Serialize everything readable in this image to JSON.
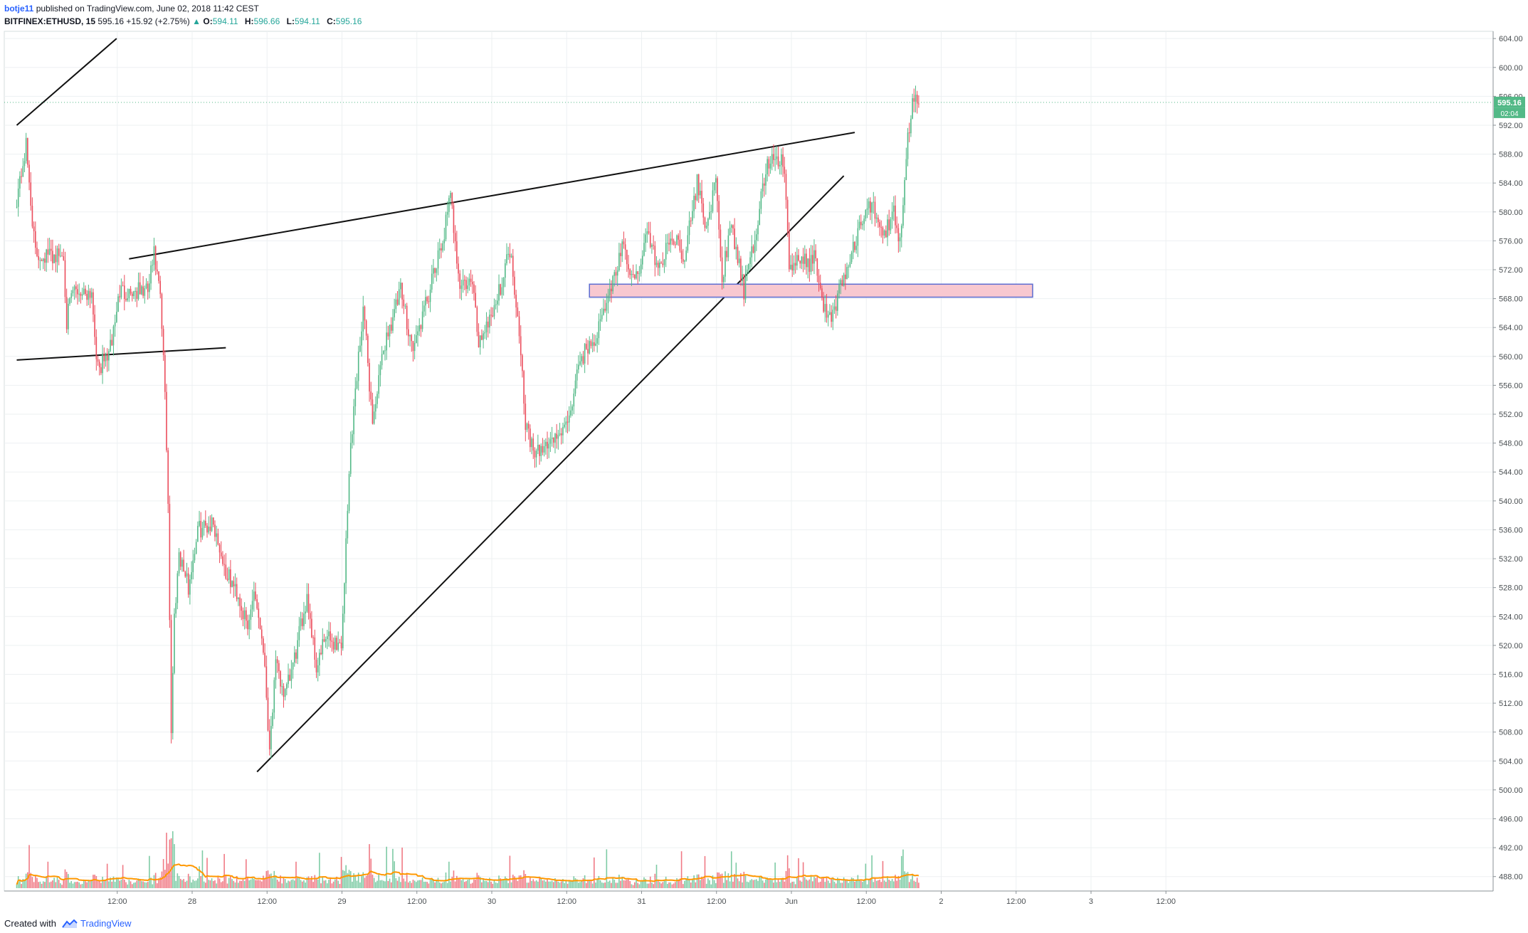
{
  "header": {
    "publisher": "botje11",
    "published_text": "published on TradingView.com, June 02, 2018 11:42 CEST",
    "symbol": "BITFINEX:ETHUSD, 15",
    "last": "595.16",
    "change": "+15.92 (+2.75%)",
    "ohlc": [
      {
        "key": "O:",
        "val": "594.11"
      },
      {
        "key": "H:",
        "val": "596.66"
      },
      {
        "key": "L:",
        "val": "594.11"
      },
      {
        "key": "C:",
        "val": "595.16"
      }
    ]
  },
  "footer": {
    "created_with": "Created with",
    "brand": "TradingView"
  },
  "chart_data": {
    "type": "candlestick",
    "y_axis": {
      "min": 486,
      "max": 605,
      "ticks": [
        "488.00",
        "492.00",
        "496.00",
        "500.00",
        "504.00",
        "508.00",
        "512.00",
        "516.00",
        "520.00",
        "524.00",
        "528.00",
        "532.00",
        "536.00",
        "540.00",
        "544.00",
        "548.00",
        "552.00",
        "556.00",
        "560.00",
        "564.00",
        "568.00",
        "572.00",
        "576.00",
        "580.00",
        "584.00",
        "588.00",
        "592.00",
        "596.00",
        "600.00",
        "604.00"
      ]
    },
    "x_axis": {
      "bars_per_day": 96,
      "ticks": [
        {
          "label": "12:00",
          "bar": 48
        },
        {
          "label": "28",
          "bar": 96
        },
        {
          "label": "12:00",
          "bar": 144
        },
        {
          "label": "29",
          "bar": 192
        },
        {
          "label": "12:00",
          "bar": 240
        },
        {
          "label": "30",
          "bar": 288
        },
        {
          "label": "12:00",
          "bar": 336
        },
        {
          "label": "31",
          "bar": 384
        },
        {
          "label": "12:00",
          "bar": 432
        },
        {
          "label": "Jun",
          "bar": 480
        },
        {
          "label": "12:00",
          "bar": 528
        },
        {
          "label": "2",
          "bar": 576
        },
        {
          "label": "12:00",
          "bar": 624
        },
        {
          "label": "3",
          "bar": 672
        },
        {
          "label": "12:00",
          "bar": 720
        }
      ]
    },
    "price_label": "595.16",
    "countdown_label": "02:04",
    "last_price": 595.16,
    "colors": {
      "up": "#53b987",
      "down": "#eb4d5c",
      "volume_ma": "#ff9800",
      "zone_fill": "#f8c8d0",
      "zone_border": "#5b6bd0"
    },
    "price_path": [
      {
        "bar": 0,
        "price": 582
      },
      {
        "bar": 6,
        "price": 589
      },
      {
        "bar": 12,
        "price": 574
      },
      {
        "bar": 30,
        "price": 574
      },
      {
        "bar": 32,
        "price": 565
      },
      {
        "bar": 36,
        "price": 569
      },
      {
        "bar": 48,
        "price": 569
      },
      {
        "bar": 52,
        "price": 558
      },
      {
        "bar": 60,
        "price": 561
      },
      {
        "bar": 66,
        "price": 569
      },
      {
        "bar": 84,
        "price": 569
      },
      {
        "bar": 88,
        "price": 574
      },
      {
        "bar": 92,
        "price": 568
      },
      {
        "bar": 95,
        "price": 555
      },
      {
        "bar": 97,
        "price": 540
      },
      {
        "bar": 99,
        "price": 508
      },
      {
        "bar": 101,
        "price": 524
      },
      {
        "bar": 104,
        "price": 533
      },
      {
        "bar": 110,
        "price": 528
      },
      {
        "bar": 116,
        "price": 536
      },
      {
        "bar": 126,
        "price": 537
      },
      {
        "bar": 134,
        "price": 530
      },
      {
        "bar": 142,
        "price": 527
      },
      {
        "bar": 148,
        "price": 522
      },
      {
        "bar": 152,
        "price": 528
      },
      {
        "bar": 158,
        "price": 520
      },
      {
        "bar": 162,
        "price": 506
      },
      {
        "bar": 166,
        "price": 517
      },
      {
        "bar": 172,
        "price": 513
      },
      {
        "bar": 178,
        "price": 518
      },
      {
        "bar": 186,
        "price": 527
      },
      {
        "bar": 192,
        "price": 517
      },
      {
        "bar": 198,
        "price": 521
      },
      {
        "bar": 208,
        "price": 520
      },
      {
        "bar": 214,
        "price": 548
      },
      {
        "bar": 222,
        "price": 567
      },
      {
        "bar": 228,
        "price": 551
      },
      {
        "bar": 236,
        "price": 562
      },
      {
        "bar": 246,
        "price": 569
      },
      {
        "bar": 254,
        "price": 561
      },
      {
        "bar": 262,
        "price": 567
      },
      {
        "bar": 272,
        "price": 575
      },
      {
        "bar": 278,
        "price": 582
      },
      {
        "bar": 284,
        "price": 570
      },
      {
        "bar": 292,
        "price": 570
      },
      {
        "bar": 296,
        "price": 562
      },
      {
        "bar": 302,
        "price": 565
      },
      {
        "bar": 308,
        "price": 568
      },
      {
        "bar": 316,
        "price": 575
      },
      {
        "bar": 322,
        "price": 564
      },
      {
        "bar": 326,
        "price": 551
      },
      {
        "bar": 332,
        "price": 546
      },
      {
        "bar": 340,
        "price": 548
      },
      {
        "bar": 352,
        "price": 550
      },
      {
        "bar": 362,
        "price": 560
      },
      {
        "bar": 372,
        "price": 563
      },
      {
        "bar": 380,
        "price": 569
      },
      {
        "bar": 388,
        "price": 575
      },
      {
        "bar": 396,
        "price": 570
      },
      {
        "bar": 404,
        "price": 577
      },
      {
        "bar": 412,
        "price": 572
      },
      {
        "bar": 420,
        "price": 577
      },
      {
        "bar": 428,
        "price": 574
      },
      {
        "bar": 436,
        "price": 584
      },
      {
        "bar": 442,
        "price": 578
      },
      {
        "bar": 448,
        "price": 584
      },
      {
        "bar": 452,
        "price": 571
      },
      {
        "bar": 458,
        "price": 578
      },
      {
        "bar": 466,
        "price": 569
      },
      {
        "bar": 472,
        "price": 575
      },
      {
        "bar": 480,
        "price": 586
      },
      {
        "bar": 486,
        "price": 588
      },
      {
        "bar": 492,
        "price": 586
      },
      {
        "bar": 495,
        "price": 572
      },
      {
        "bar": 500,
        "price": 573
      },
      {
        "bar": 508,
        "price": 573
      },
      {
        "bar": 512,
        "price": 574
      },
      {
        "bar": 516,
        "price": 567
      },
      {
        "bar": 522,
        "price": 565
      },
      {
        "bar": 528,
        "price": 570
      },
      {
        "bar": 534,
        "price": 573
      },
      {
        "bar": 540,
        "price": 578
      },
      {
        "bar": 548,
        "price": 581
      },
      {
        "bar": 556,
        "price": 577
      },
      {
        "bar": 562,
        "price": 580
      },
      {
        "bar": 566,
        "price": 576
      },
      {
        "bar": 570,
        "price": 588
      },
      {
        "bar": 574,
        "price": 596
      },
      {
        "bar": 578,
        "price": 595
      }
    ],
    "drawings": [
      {
        "type": "trendline",
        "from": {
          "bar": 0,
          "price": 592
        },
        "to": {
          "bar": 64,
          "price": 604
        }
      },
      {
        "type": "trendline",
        "from": {
          "bar": 0,
          "price": 559.5
        },
        "to": {
          "bar": 134,
          "price": 561.2
        }
      },
      {
        "type": "trendline",
        "from": {
          "bar": 72,
          "price": 573.5
        },
        "to": {
          "bar": 537,
          "price": 591
        }
      },
      {
        "type": "trendline",
        "from": {
          "bar": 154,
          "price": 502.5
        },
        "to": {
          "bar": 530,
          "price": 585
        }
      },
      {
        "type": "rectangle",
        "from": {
          "bar": 367,
          "price": 570
        },
        "to": {
          "bar": 651,
          "price": 568.2
        }
      }
    ]
  }
}
